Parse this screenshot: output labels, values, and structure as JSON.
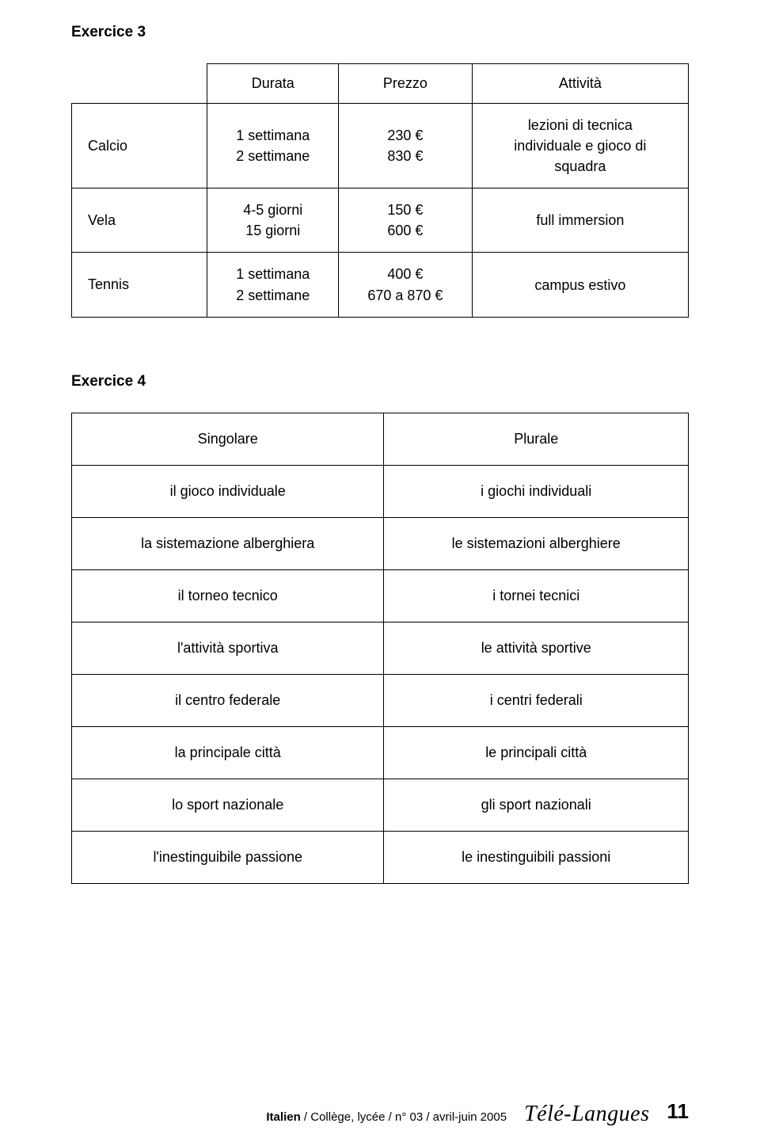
{
  "ex3": {
    "heading": "Exercice  3",
    "headers": {
      "c1": "",
      "c2": "Durata",
      "c3": "Prezzo",
      "c4": "Attività"
    },
    "rows": [
      {
        "label": "Calcio",
        "durata": "1 settimana\n2 settimane",
        "prezzo": "230 €\n830 €",
        "attivita": "lezioni di tecnica\nindividuale e gioco di\nsquadra"
      },
      {
        "label": "Vela",
        "durata": "4-5 giorni\n15 giorni",
        "prezzo": "150 €\n600 €",
        "attivita": "full immersion"
      },
      {
        "label": "Tennis",
        "durata": "1 settimana\n2 settimane",
        "prezzo": "400 €\n670 a 870 €",
        "attivita": "campus estivo"
      }
    ]
  },
  "ex4": {
    "heading": "Exercice 4",
    "headers": {
      "sing": "Singolare",
      "plur": "Plurale"
    },
    "rows": [
      {
        "sing": "il gioco individuale",
        "plur": "i giochi individuali"
      },
      {
        "sing": "la sistemazione alberghiera",
        "plur": "le sistemazioni alberghiere"
      },
      {
        "sing": "il torneo tecnico",
        "plur": "i tornei tecnici"
      },
      {
        "sing": "l'attività sportiva",
        "plur": "le attività sportive"
      },
      {
        "sing": "il centro federale",
        "plur": "i centri federali"
      },
      {
        "sing": "la principale città",
        "plur": "le principali città"
      },
      {
        "sing": "lo sport nazionale",
        "plur": "gli sport nazionali"
      },
      {
        "sing": "l'inestinguibile passione",
        "plur": "le inestinguibili passioni"
      }
    ]
  },
  "footer": {
    "source_bold": "Italien",
    "source_rest": " / Collège, lycée / n° 03 / avril-juin 2005",
    "logo": "Télé-Langues",
    "page": "11"
  }
}
